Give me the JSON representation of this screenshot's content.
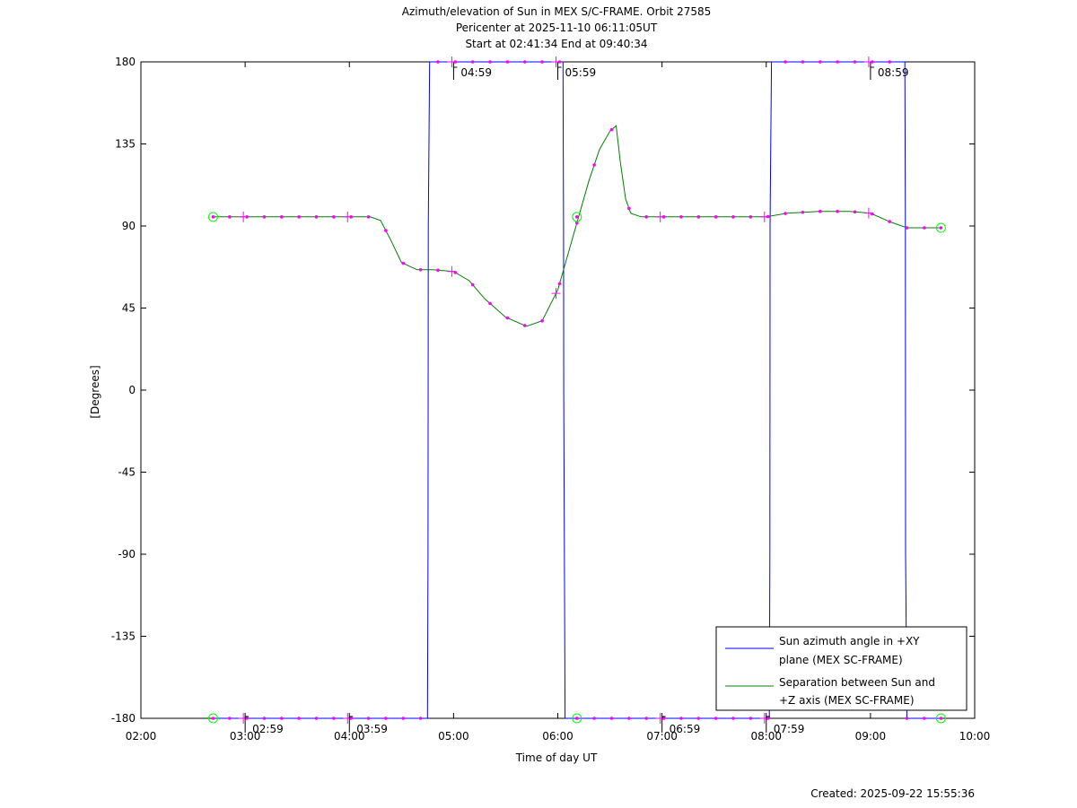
{
  "chart_data": {
    "type": "line",
    "title_lines": [
      "Azimuth/elevation of Sun in MEX S/C-FRAME.  Orbit 27585",
      "Pericenter at 2025-11-10 06:11:05UT",
      "Start at 02:41:34 End at 09:40:34"
    ],
    "xlabel": "Time of day UT",
    "ylabel": "[Degrees]",
    "created": "Created: 2025-09-22 15:55:36",
    "xlim_hours": [
      2,
      10
    ],
    "ylim": [
      -180,
      180
    ],
    "x_ticks": [
      {
        "v": 2,
        "label": "02:00"
      },
      {
        "v": 3,
        "label": "03:00"
      },
      {
        "v": 4,
        "label": "04:00"
      },
      {
        "v": 5,
        "label": "05:00"
      },
      {
        "v": 6,
        "label": "06:00"
      },
      {
        "v": 7,
        "label": "07:00"
      },
      {
        "v": 8,
        "label": "08:00"
      },
      {
        "v": 9,
        "label": "09:00"
      },
      {
        "v": 10,
        "label": "10:00"
      }
    ],
    "y_ticks": [
      {
        "v": 180,
        "label": "180"
      },
      {
        "v": 135,
        "label": "135"
      },
      {
        "v": 90,
        "label": "90"
      },
      {
        "v": 45,
        "label": "45"
      },
      {
        "v": 0,
        "label": "0"
      },
      {
        "v": -45,
        "label": "-45"
      },
      {
        "v": -90,
        "label": "-90"
      },
      {
        "v": -135,
        "label": "-135"
      },
      {
        "v": -180,
        "label": "-180"
      }
    ],
    "colors": {
      "azimuth": "#0000ff",
      "separation": "#008000",
      "markers": "#ff00ff",
      "endpoints": "#00ff00"
    },
    "series": [
      {
        "name": "Sun azimuth angle in +XY plane (MEX SC-FRAME)",
        "legend_lines": [
          "Sun azimuth angle in +XY",
          "plane (MEX SC-FRAME)"
        ],
        "color": "#0000ff",
        "x": [
          2.693,
          4.75,
          4.755,
          4.757,
          4.77,
          6.05,
          6.055,
          6.057,
          6.07,
          8.03,
          8.035,
          8.037,
          8.05,
          9.33,
          9.335,
          9.337,
          9.35,
          9.676
        ],
        "y": [
          -180,
          -180,
          -90,
          90,
          180,
          180,
          90,
          0,
          -180,
          -180,
          -90,
          90,
          180,
          180,
          90,
          -90,
          -180,
          -180
        ]
      },
      {
        "name": "Separation between Sun and +Z axis (MEX SC-FRAME)",
        "legend_lines": [
          "Separation between Sun and",
          "+Z axis (MEX SC-FRAME)"
        ],
        "color": "#008000",
        "x": [
          2.693,
          3.0,
          3.5,
          4.0,
          4.2,
          4.3,
          4.4,
          4.5,
          4.65,
          4.8,
          5.0,
          5.15,
          5.3,
          5.5,
          5.7,
          5.85,
          6.0,
          6.1,
          6.2,
          6.3,
          6.4,
          6.5,
          6.56,
          6.6,
          6.65,
          6.7,
          6.8,
          7.0,
          7.5,
          8.0,
          8.2,
          8.5,
          8.8,
          9.0,
          9.2,
          9.35,
          9.5,
          9.676
        ],
        "y": [
          95,
          95,
          95,
          95,
          95,
          93,
          82,
          70,
          66,
          66,
          65,
          60,
          50,
          40,
          35,
          38,
          55,
          75,
          95,
          115,
          132,
          142,
          145,
          125,
          105,
          97,
          95,
          95,
          95,
          95,
          97,
          98,
          98,
          97,
          92,
          89,
          89,
          89
        ]
      }
    ],
    "orbit_markers": [
      {
        "x": 2.693,
        "y": 95
      },
      {
        "x": 2.693,
        "y": -180
      },
      {
        "x": 6.183,
        "y": 95
      },
      {
        "x": 6.183,
        "y": -180
      },
      {
        "x": 9.676,
        "y": 89
      },
      {
        "x": 9.676,
        "y": -180
      }
    ],
    "time_annotations": [
      {
        "time_hours": 2.983,
        "y": -180,
        "label": "02:59"
      },
      {
        "time_hours": 3.983,
        "y": -180,
        "label": "03:59"
      },
      {
        "time_hours": 4.983,
        "y": 180,
        "label": "04:59"
      },
      {
        "time_hours": 5.983,
        "y": 180,
        "label": "05:59"
      },
      {
        "time_hours": 6.983,
        "y": -180,
        "label": "06:59"
      },
      {
        "time_hours": 7.983,
        "y": -180,
        "label": "07:59"
      },
      {
        "time_hours": 8.983,
        "y": 180,
        "label": "08:59"
      }
    ]
  }
}
